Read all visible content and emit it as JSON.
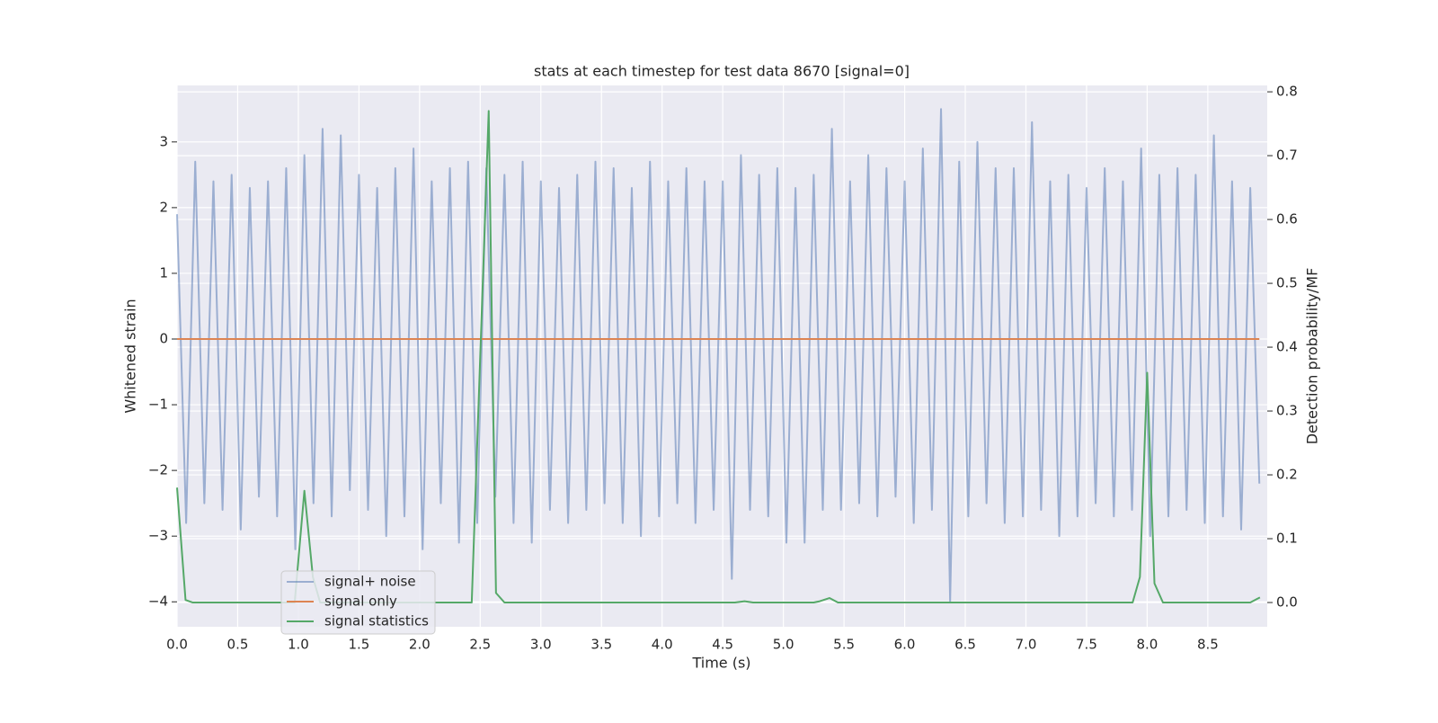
{
  "chart_data": {
    "type": "line",
    "title": "stats at each timestep for test data 8670 [signal=0]",
    "x_label": "Time (s)",
    "y_label": "Whitened strain",
    "y2_label": "Detection probability/MF",
    "xlim": [
      0,
      8.99
    ],
    "ylim": [
      -4.38,
      3.86
    ],
    "y2lim": [
      -0.038,
      0.81
    ],
    "xticks": [
      {
        "value": 0,
        "label": "0.0"
      },
      0.5,
      {
        "value": 1,
        "label": "1.0"
      },
      1.5,
      {
        "value": 2,
        "label": "2.0"
      },
      2.5,
      {
        "value": 3,
        "label": "3.0"
      },
      3.5,
      {
        "value": 4,
        "label": "4.0"
      },
      4.5,
      {
        "value": 5,
        "label": "5.0"
      },
      5.5,
      {
        "value": 6,
        "label": "6.0"
      },
      6.5,
      {
        "value": 7,
        "label": "7.0"
      },
      7.5,
      {
        "value": 8,
        "label": "8.0"
      },
      8.5
    ],
    "yticks": [
      {
        "value": -4,
        "label": "−4"
      },
      {
        "value": -3,
        "label": "−3"
      },
      {
        "value": -2,
        "label": "−2"
      },
      {
        "value": -1,
        "label": "−1"
      },
      0,
      1,
      2,
      3
    ],
    "y2ticks": [
      {
        "value": 0,
        "label": "0.0"
      },
      0.1,
      0.2,
      0.3,
      0.4,
      0.5,
      0.6,
      0.7,
      0.8
    ],
    "grid": true,
    "legend": "lower left",
    "series": [
      {
        "name": "signal+ noise",
        "color": "#4c72b0",
        "opacity": 0.5,
        "x": [
          0,
          0.075,
          0.15,
          0.225,
          0.3,
          0.375,
          0.45,
          0.525,
          0.6,
          0.675,
          0.75,
          0.825,
          0.9,
          0.975,
          1.05,
          1.125,
          1.2,
          1.275,
          1.35,
          1.425,
          1.5,
          1.575,
          1.65,
          1.725,
          1.8,
          1.875,
          1.95,
          2.025,
          2.1,
          2.175,
          2.25,
          2.325,
          2.4,
          2.475,
          2.55,
          2.625,
          2.7,
          2.775,
          2.85,
          2.925,
          3.0,
          3.075,
          3.15,
          3.225,
          3.3,
          3.375,
          3.45,
          3.525,
          3.6,
          3.675,
          3.75,
          3.825,
          3.9,
          3.975,
          4.05,
          4.125,
          4.2,
          4.275,
          4.35,
          4.425,
          4.5,
          4.575,
          4.65,
          4.725,
          4.8,
          4.875,
          4.95,
          5.025,
          5.1,
          5.175,
          5.25,
          5.325,
          5.4,
          5.475,
          5.55,
          5.625,
          5.7,
          5.775,
          5.85,
          5.925,
          6.0,
          6.075,
          6.15,
          6.225,
          6.3,
          6.375,
          6.45,
          6.525,
          6.6,
          6.675,
          6.75,
          6.825,
          6.9,
          6.975,
          7.05,
          7.125,
          7.2,
          7.275,
          7.35,
          7.425,
          7.5,
          7.575,
          7.65,
          7.725,
          7.8,
          7.875,
          7.95,
          8.025,
          8.1,
          8.175,
          8.25,
          8.325,
          8.4,
          8.475,
          8.55,
          8.625,
          8.7,
          8.775,
          8.85,
          8.925
        ],
        "values": [
          1.9,
          -2.8,
          2.7,
          -2.5,
          2.4,
          -2.6,
          2.5,
          -2.9,
          2.3,
          -2.4,
          2.4,
          -2.7,
          2.6,
          -3.2,
          2.8,
          -2.5,
          3.2,
          -2.7,
          3.1,
          -2.3,
          2.5,
          -2.6,
          2.3,
          -3.0,
          2.6,
          -2.7,
          2.9,
          -3.2,
          2.4,
          -2.5,
          2.6,
          -3.1,
          2.7,
          -2.8,
          2.6,
          -2.4,
          2.5,
          -2.8,
          2.7,
          -3.1,
          2.4,
          -2.6,
          2.3,
          -2.8,
          2.5,
          -2.6,
          2.7,
          -2.5,
          2.6,
          -2.8,
          2.3,
          -3.0,
          2.7,
          -2.7,
          2.4,
          -2.5,
          2.6,
          -2.8,
          2.4,
          -2.6,
          2.4,
          -3.65,
          2.8,
          -2.6,
          2.5,
          -2.7,
          2.6,
          -3.1,
          2.3,
          -3.1,
          2.5,
          -2.6,
          3.2,
          -2.6,
          2.4,
          -2.5,
          2.8,
          -2.7,
          2.6,
          -2.4,
          2.4,
          -2.8,
          2.9,
          -2.6,
          3.5,
          -4.0,
          2.7,
          -2.7,
          3.0,
          -2.5,
          2.6,
          -2.8,
          2.6,
          -2.7,
          3.3,
          -2.6,
          2.4,
          -3.0,
          2.5,
          -2.7,
          2.3,
          -2.5,
          2.6,
          -2.7,
          2.4,
          -2.6,
          2.9,
          -3.0,
          2.5,
          -2.7,
          2.6,
          -2.6,
          2.5,
          -2.8,
          3.1,
          -2.7,
          2.4,
          -2.9,
          2.3,
          -2.2
        ]
      },
      {
        "name": "signal only",
        "color": "#dd8452",
        "opacity": 1,
        "x": [
          0,
          8.925
        ],
        "values": [
          0,
          0
        ]
      },
      {
        "name": "signal statistics",
        "color": "#55a868",
        "opacity": 1,
        "axis": "y2",
        "x": [
          0,
          0.07,
          0.13,
          0.97,
          1.05,
          1.12,
          1.18,
          2.43,
          2.57,
          2.63,
          2.7,
          4.6,
          4.68,
          4.75,
          5.25,
          5.3,
          5.38,
          5.45,
          7.88,
          7.94,
          8.0,
          8.06,
          8.13,
          8.85,
          8.93
        ],
        "values": [
          0.18,
          0.004,
          0,
          0,
          0.175,
          0.04,
          0,
          0,
          0.77,
          0.015,
          0,
          0,
          0.002,
          0,
          0,
          0.002,
          0.007,
          0,
          0,
          0.04,
          0.36,
          0.03,
          0,
          0,
          0.008
        ]
      }
    ]
  }
}
